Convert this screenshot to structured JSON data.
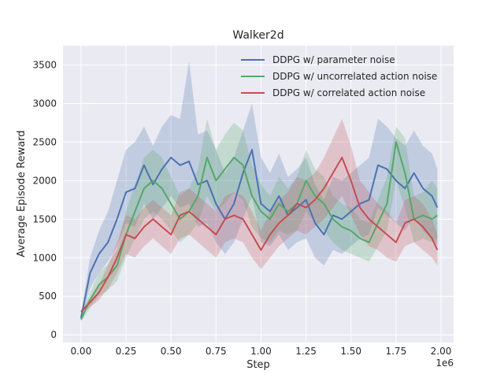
{
  "chart_data": {
    "type": "line",
    "title": "Walker2d",
    "xlabel": "Step",
    "ylabel": "Average Episode Reward",
    "x_multiplier_label": "1e6",
    "xlim": [
      -0.1,
      2.07
    ],
    "ylim": [
      -100,
      3750
    ],
    "xticks": [
      0.0,
      0.25,
      0.5,
      0.75,
      1.0,
      1.25,
      1.5,
      1.75,
      2.0
    ],
    "xtick_labels": [
      "0.00",
      "0.25",
      "0.50",
      "0.75",
      "1.00",
      "1.25",
      "1.50",
      "1.75",
      "2.00"
    ],
    "yticks": [
      0,
      500,
      1000,
      1500,
      2000,
      2500,
      3000,
      3500
    ],
    "ytick_labels": [
      "0",
      "500",
      "1000",
      "1500",
      "2000",
      "2500",
      "3000",
      "3500"
    ],
    "grid": true,
    "background": "#eaeaf2",
    "legend_position": "top-right",
    "series": [
      {
        "name": "DDPG w/ parameter noise",
        "color": "#4c72b0",
        "x": [
          0.0,
          0.05,
          0.1,
          0.15,
          0.2,
          0.25,
          0.3,
          0.35,
          0.4,
          0.45,
          0.5,
          0.55,
          0.6,
          0.65,
          0.7,
          0.75,
          0.8,
          0.85,
          0.9,
          0.95,
          1.0,
          1.05,
          1.1,
          1.15,
          1.2,
          1.25,
          1.3,
          1.35,
          1.4,
          1.45,
          1.5,
          1.55,
          1.6,
          1.65,
          1.7,
          1.75,
          1.8,
          1.85,
          1.9,
          1.95,
          1.98
        ],
        "y": [
          220,
          800,
          1050,
          1200,
          1500,
          1850,
          1900,
          2200,
          1950,
          2150,
          2300,
          2200,
          2250,
          1950,
          2000,
          1700,
          1500,
          1700,
          2100,
          2400,
          1700,
          1600,
          1800,
          1550,
          1650,
          1750,
          1450,
          1300,
          1550,
          1500,
          1600,
          1700,
          1750,
          2200,
          2150,
          2000,
          1900,
          2100,
          1900,
          1800,
          1650
        ],
        "lower": [
          180,
          600,
          800,
          950,
          1150,
          1450,
          1400,
          1700,
          1500,
          1650,
          1800,
          1650,
          1700,
          1400,
          1450,
          1200,
          1050,
          1200,
          1500,
          1800,
          1200,
          1150,
          1300,
          1100,
          1200,
          1250,
          1000,
          900,
          1100,
          1050,
          1150,
          1250,
          1300,
          1650,
          1550,
          1450,
          1350,
          1550,
          1350,
          1250,
          1150
        ],
        "upper": [
          260,
          1000,
          1350,
          1600,
          2000,
          2400,
          2500,
          2700,
          2450,
          2700,
          2850,
          2800,
          3550,
          2600,
          2650,
          2400,
          2100,
          2300,
          2650,
          3000,
          2300,
          2100,
          2350,
          2050,
          2150,
          2300,
          1950,
          1750,
          2050,
          2000,
          2100,
          2200,
          2300,
          2800,
          2700,
          2550,
          2450,
          2650,
          2450,
          2350,
          2150
        ]
      },
      {
        "name": "DDPG w/ uncorrelated action noise",
        "color": "#55a868",
        "x": [
          0.0,
          0.05,
          0.1,
          0.15,
          0.2,
          0.25,
          0.3,
          0.35,
          0.4,
          0.45,
          0.5,
          0.55,
          0.6,
          0.65,
          0.7,
          0.75,
          0.8,
          0.85,
          0.9,
          0.95,
          1.0,
          1.05,
          1.1,
          1.15,
          1.2,
          1.25,
          1.3,
          1.35,
          1.4,
          1.45,
          1.5,
          1.55,
          1.6,
          1.65,
          1.7,
          1.75,
          1.8,
          1.85,
          1.9,
          1.95,
          1.98
        ],
        "y": [
          200,
          450,
          650,
          750,
          900,
          1300,
          1600,
          1900,
          2000,
          1900,
          1700,
          1500,
          1600,
          1800,
          2300,
          2000,
          2150,
          2300,
          2200,
          1800,
          1600,
          1500,
          1700,
          1600,
          1700,
          2000,
          1800,
          1700,
          1500,
          1400,
          1350,
          1250,
          1200,
          1450,
          1700,
          2500,
          2100,
          1500,
          1550,
          1500,
          1550
        ],
        "lower": [
          170,
          350,
          500,
          580,
          700,
          1000,
          1250,
          1500,
          1600,
          1500,
          1350,
          1200,
          1300,
          1450,
          1800,
          1600,
          1700,
          1850,
          1750,
          1400,
          1250,
          1200,
          1350,
          1300,
          1350,
          1600,
          1450,
          1350,
          1200,
          1100,
          1050,
          1000,
          950,
          1150,
          1350,
          2000,
          1650,
          1200,
          1250,
          1200,
          1250
        ],
        "upper": [
          230,
          550,
          800,
          920,
          1100,
          1600,
          1950,
          2300,
          2400,
          2300,
          2050,
          1800,
          1900,
          2150,
          2800,
          2400,
          2600,
          2750,
          2650,
          2200,
          1950,
          1800,
          2050,
          1900,
          2050,
          2400,
          2150,
          2050,
          1800,
          1700,
          1650,
          1500,
          1450,
          1750,
          2050,
          2700,
          2550,
          1800,
          1850,
          2000,
          1900
        ]
      },
      {
        "name": "DDPG w/ correlated action noise",
        "color": "#c44e52",
        "x": [
          0.0,
          0.05,
          0.1,
          0.15,
          0.2,
          0.25,
          0.3,
          0.35,
          0.4,
          0.45,
          0.5,
          0.55,
          0.6,
          0.65,
          0.7,
          0.75,
          0.8,
          0.85,
          0.9,
          0.95,
          1.0,
          1.05,
          1.1,
          1.15,
          1.2,
          1.25,
          1.3,
          1.35,
          1.4,
          1.45,
          1.5,
          1.55,
          1.6,
          1.65,
          1.7,
          1.75,
          1.8,
          1.85,
          1.9,
          1.95,
          1.98
        ],
        "y": [
          300,
          420,
          550,
          750,
          1000,
          1300,
          1250,
          1400,
          1500,
          1400,
          1300,
          1550,
          1600,
          1500,
          1400,
          1300,
          1500,
          1550,
          1500,
          1300,
          1100,
          1300,
          1450,
          1550,
          1700,
          1650,
          1750,
          1900,
          2100,
          2300,
          2000,
          1650,
          1500,
          1400,
          1300,
          1200,
          1450,
          1500,
          1400,
          1250,
          1100
        ],
        "lower": [
          270,
          360,
          450,
          600,
          800,
          1050,
          1000,
          1150,
          1250,
          1150,
          1050,
          1250,
          1300,
          1200,
          1100,
          1000,
          1200,
          1250,
          1200,
          1000,
          850,
          1000,
          1150,
          1250,
          1350,
          1300,
          1400,
          1500,
          1650,
          1800,
          1550,
          1300,
          1150,
          1100,
          1000,
          950,
          1150,
          1200,
          1100,
          1000,
          900
        ],
        "upper": [
          330,
          480,
          650,
          900,
          1200,
          1550,
          1500,
          1650,
          1750,
          1650,
          1550,
          1850,
          1900,
          1800,
          1700,
          1600,
          1800,
          1850,
          1800,
          1600,
          1350,
          1600,
          1750,
          1850,
          2050,
          2000,
          2100,
          2300,
          2550,
          2800,
          2450,
          2000,
          1850,
          1700,
          1600,
          1450,
          1750,
          1800,
          1700,
          1500,
          1300
        ]
      }
    ]
  }
}
